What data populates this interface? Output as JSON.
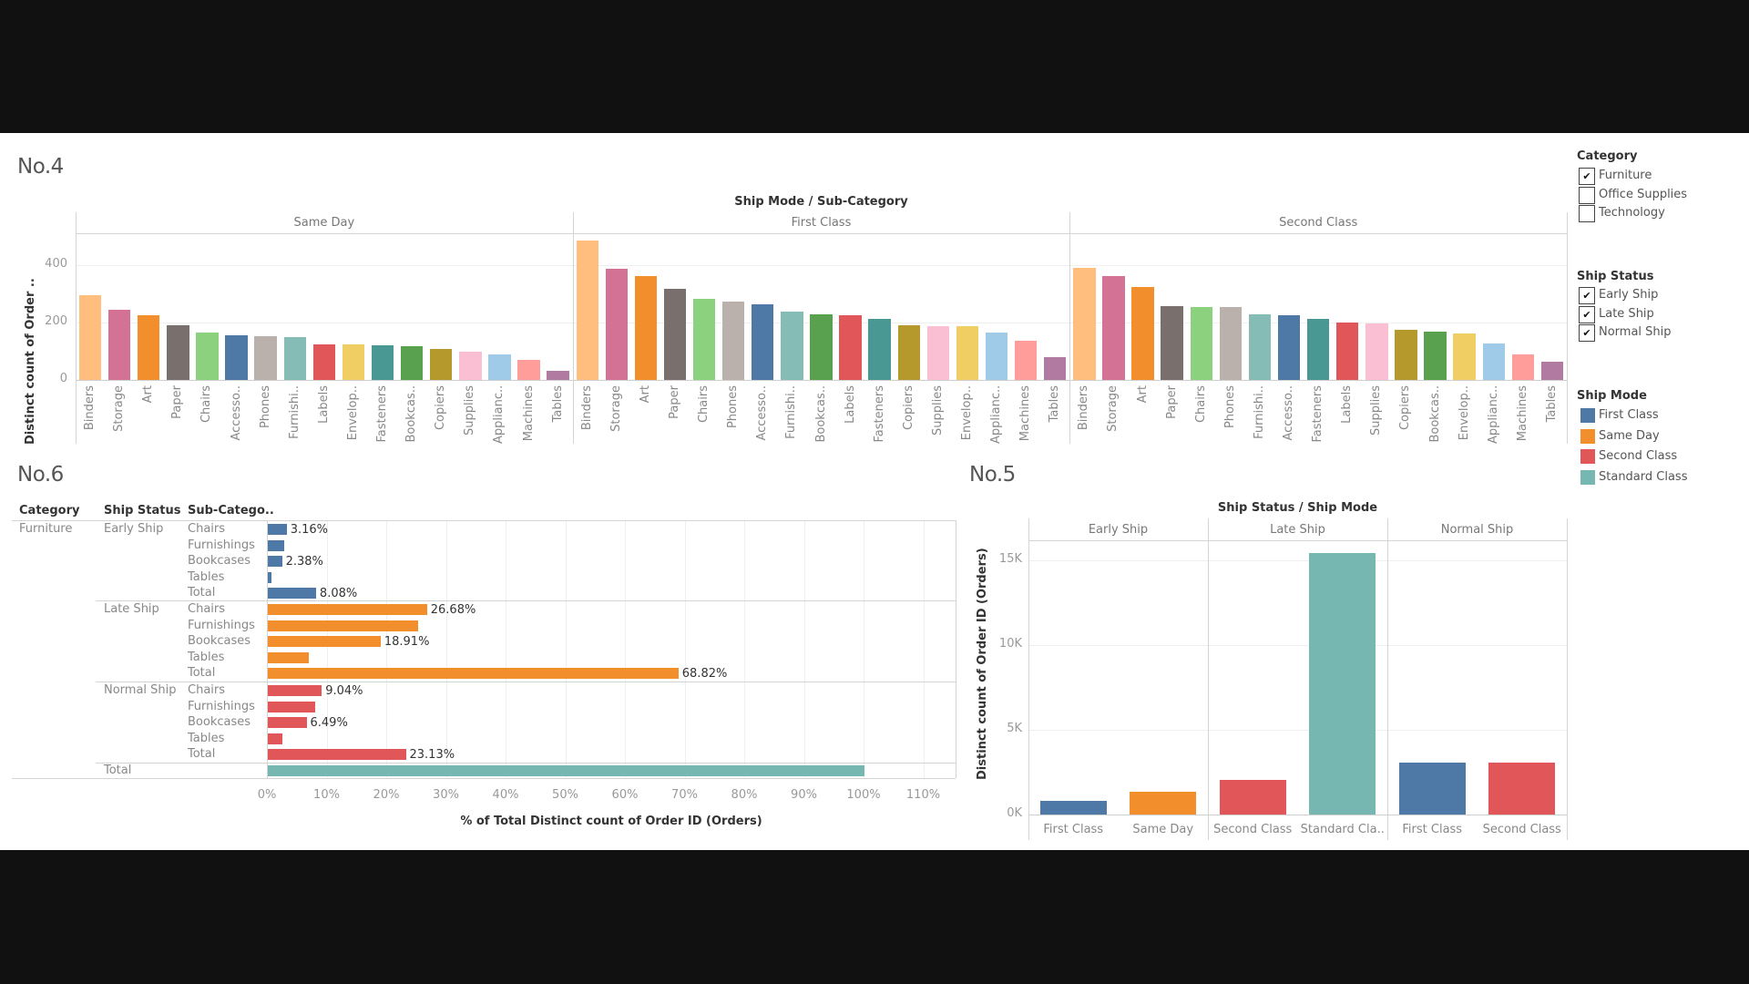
{
  "colors": {
    "ship_mode": {
      "First Class": "#4E79A7",
      "Same Day": "#F28E2B",
      "Second Class": "#E15759",
      "Standard Class": "#76B7B2"
    },
    "sub_category": {
      "Binders": "#FFBE7D",
      "Storage": "#D37295",
      "Art": "#F28E2B",
      "Paper": "#79706E",
      "Chairs": "#8CD17D",
      "Accessories": "#4E79A7",
      "Phones": "#BAB0AC",
      "Furnishings": "#86BCB6",
      "Labels": "#E15759",
      "Envelopes": "#F1CE63",
      "Fasteners": "#499894",
      "Bookcases": "#59A14F",
      "Copiers": "#B6992D",
      "Supplies": "#FABFD2",
      "Appliances": "#A0CBE8",
      "Machines": "#FF9D9A",
      "Tables": "#B07AA1"
    }
  },
  "titles": {
    "no4": "No.4",
    "no5": "No.5",
    "no6": "No.6"
  },
  "legend": {
    "category": {
      "title": "Category",
      "items": [
        {
          "label": "Furniture",
          "checked": true
        },
        {
          "label": "Office Supplies",
          "checked": false
        },
        {
          "label": "Technology",
          "checked": false
        }
      ]
    },
    "ship_status": {
      "title": "Ship Status",
      "items": [
        {
          "label": "Early Ship",
          "checked": true
        },
        {
          "label": "Late Ship",
          "checked": true
        },
        {
          "label": "Normal Ship",
          "checked": true
        }
      ]
    },
    "ship_mode": {
      "title": "Ship Mode",
      "items": [
        {
          "label": "First Class",
          "color": "#4E79A7"
        },
        {
          "label": "Same Day",
          "color": "#F28E2B"
        },
        {
          "label": "Second Class",
          "color": "#E15759"
        },
        {
          "label": "Standard Class",
          "color": "#76B7B2"
        }
      ]
    }
  },
  "chart_data": [
    {
      "id": "no4",
      "type": "bar",
      "title": "Ship Mode / Sub-Category",
      "ylabel": "Distinct count of Order ..",
      "xlabel": "",
      "ylim": [
        0,
        520
      ],
      "yticks": [
        {
          "v": 0,
          "label": "0"
        },
        {
          "v": 200,
          "label": "200"
        },
        {
          "v": 400,
          "label": "400"
        }
      ],
      "grid": true,
      "panels": [
        {
          "name": "Same Day",
          "bars": [
            {
              "cat": "Binders",
              "label": "Binders",
              "value": 294
            },
            {
              "cat": "Storage",
              "label": "Storage",
              "value": 245
            },
            {
              "cat": "Art",
              "label": "Art",
              "value": 225
            },
            {
              "cat": "Paper",
              "label": "Paper",
              "value": 189
            },
            {
              "cat": "Chairs",
              "label": "Chairs",
              "value": 166
            },
            {
              "cat": "Accessories",
              "label": "Accesso..",
              "value": 157
            },
            {
              "cat": "Phones",
              "label": "Phones",
              "value": 153
            },
            {
              "cat": "Furnishings",
              "label": "Furnishi..",
              "value": 150
            },
            {
              "cat": "Labels",
              "label": "Labels",
              "value": 125
            },
            {
              "cat": "Envelopes",
              "label": "Envelop..",
              "value": 124
            },
            {
              "cat": "Fasteners",
              "label": "Fasteners",
              "value": 121
            },
            {
              "cat": "Bookcases",
              "label": "Bookcas..",
              "value": 117
            },
            {
              "cat": "Copiers",
              "label": "Copiers",
              "value": 108
            },
            {
              "cat": "Supplies",
              "label": "Supplies",
              "value": 97
            },
            {
              "cat": "Appliances",
              "label": "Applianc..",
              "value": 89
            },
            {
              "cat": "Machines",
              "label": "Machines",
              "value": 69
            },
            {
              "cat": "Tables",
              "label": "Tables",
              "value": 32
            }
          ]
        },
        {
          "name": "First Class",
          "bars": [
            {
              "cat": "Binders",
              "label": "Binders",
              "value": 486
            },
            {
              "cat": "Storage",
              "label": "Storage",
              "value": 387
            },
            {
              "cat": "Art",
              "label": "Art",
              "value": 362
            },
            {
              "cat": "Paper",
              "label": "Paper",
              "value": 316
            },
            {
              "cat": "Chairs",
              "label": "Chairs",
              "value": 281
            },
            {
              "cat": "Phones",
              "label": "Phones",
              "value": 272
            },
            {
              "cat": "Accessories",
              "label": "Accesso..",
              "value": 264
            },
            {
              "cat": "Furnishings",
              "label": "Furnishi..",
              "value": 238
            },
            {
              "cat": "Bookcases",
              "label": "Bookcas..",
              "value": 228
            },
            {
              "cat": "Labels",
              "label": "Labels",
              "value": 225
            },
            {
              "cat": "Fasteners",
              "label": "Fasteners",
              "value": 212
            },
            {
              "cat": "Copiers",
              "label": "Copiers",
              "value": 189
            },
            {
              "cat": "Supplies",
              "label": "Supplies",
              "value": 186
            },
            {
              "cat": "Envelopes",
              "label": "Envelop..",
              "value": 186
            },
            {
              "cat": "Appliances",
              "label": "Applianc..",
              "value": 164
            },
            {
              "cat": "Machines",
              "label": "Machines",
              "value": 138
            },
            {
              "cat": "Tables",
              "label": "Tables",
              "value": 79
            }
          ]
        },
        {
          "name": "Second Class",
          "bars": [
            {
              "cat": "Binders",
              "label": "Binders",
              "value": 390
            },
            {
              "cat": "Storage",
              "label": "Storage",
              "value": 362
            },
            {
              "cat": "Art",
              "label": "Art",
              "value": 325
            },
            {
              "cat": "Paper",
              "label": "Paper",
              "value": 258
            },
            {
              "cat": "Chairs",
              "label": "Chairs",
              "value": 255
            },
            {
              "cat": "Phones",
              "label": "Phones",
              "value": 255
            },
            {
              "cat": "Furnishings",
              "label": "Furnishi..",
              "value": 228
            },
            {
              "cat": "Accessories",
              "label": "Accesso..",
              "value": 225
            },
            {
              "cat": "Fasteners",
              "label": "Fasteners",
              "value": 212
            },
            {
              "cat": "Labels",
              "label": "Labels",
              "value": 199
            },
            {
              "cat": "Supplies",
              "label": "Supplies",
              "value": 196
            },
            {
              "cat": "Copiers",
              "label": "Copiers",
              "value": 176
            },
            {
              "cat": "Bookcases",
              "label": "Bookcas..",
              "value": 169
            },
            {
              "cat": "Envelopes",
              "label": "Envelop..",
              "value": 163
            },
            {
              "cat": "Appliances",
              "label": "Applianc..",
              "value": 127
            },
            {
              "cat": "Machines",
              "label": "Machines",
              "value": 88
            },
            {
              "cat": "Tables",
              "label": "Tables",
              "value": 65
            }
          ]
        }
      ]
    },
    {
      "id": "no6",
      "type": "bar",
      "orientation": "horizontal",
      "xlabel": "% of Total Distinct count of Order ID (Orders)",
      "xlim": [
        0,
        115
      ],
      "xticks": [
        "0%",
        "10%",
        "20%",
        "30%",
        "40%",
        "50%",
        "60%",
        "70%",
        "80%",
        "90%",
        "100%",
        "110%"
      ],
      "columns": [
        "Category",
        "Ship Status",
        "Sub-Catego.."
      ],
      "category": "Furniture",
      "grid": true,
      "groups": [
        {
          "status": "Early Ship",
          "color": "#4E79A7",
          "rows": [
            {
              "sub": "Chairs",
              "value": 3.16,
              "label": "3.16%"
            },
            {
              "sub": "Furnishings",
              "value": 2.72,
              "label": ""
            },
            {
              "sub": "Bookcases",
              "value": 2.38,
              "label": "2.38%"
            },
            {
              "sub": "Tables",
              "value": 0.62,
              "label": ""
            },
            {
              "sub": "Total",
              "value": 8.08,
              "label": "8.08%"
            }
          ]
        },
        {
          "status": "Late Ship",
          "color": "#F28E2B",
          "rows": [
            {
              "sub": "Chairs",
              "value": 26.68,
              "label": "26.68%"
            },
            {
              "sub": "Furnishings",
              "value": 25.2,
              "label": ""
            },
            {
              "sub": "Bookcases",
              "value": 18.91,
              "label": "18.91%"
            },
            {
              "sub": "Tables",
              "value": 6.8,
              "label": ""
            },
            {
              "sub": "Total",
              "value": 68.82,
              "label": "68.82%"
            }
          ]
        },
        {
          "status": "Normal Ship",
          "color": "#E15759",
          "rows": [
            {
              "sub": "Chairs",
              "value": 9.04,
              "label": "9.04%"
            },
            {
              "sub": "Furnishings",
              "value": 7.9,
              "label": ""
            },
            {
              "sub": "Bookcases",
              "value": 6.49,
              "label": "6.49%"
            },
            {
              "sub": "Tables",
              "value": 2.4,
              "label": ""
            },
            {
              "sub": "Total",
              "value": 23.13,
              "label": "23.13%"
            }
          ]
        }
      ],
      "grand_total": {
        "label": "Total",
        "value": 100,
        "color": "#76B7B2"
      }
    },
    {
      "id": "no5",
      "type": "bar",
      "title": "Ship Status / Ship Mode",
      "ylabel": "Distinct count of Order ID (Orders)",
      "xlabel": "",
      "ylim": [
        0,
        16500
      ],
      "yticks": [
        {
          "v": 0,
          "label": "0K"
        },
        {
          "v": 5000,
          "label": "5K"
        },
        {
          "v": 10000,
          "label": "10K"
        },
        {
          "v": 15000,
          "label": "15K"
        }
      ],
      "grid": true,
      "panels": [
        {
          "name": "Early Ship",
          "bars": [
            {
              "mode": "First Class",
              "label": "First Class",
              "value": 806
            },
            {
              "mode": "Same Day",
              "label": "Same Day",
              "value": 1344
            }
          ]
        },
        {
          "name": "Late Ship",
          "bars": [
            {
              "mode": "Second Class",
              "label": "Second Class",
              "value": 2060
            },
            {
              "mode": "Standard Class",
              "label": "Standard Cla..",
              "value": 15414
            }
          ]
        },
        {
          "name": "Normal Ship",
          "bars": [
            {
              "mode": "First Class",
              "label": "First Class",
              "value": 3047
            },
            {
              "mode": "Second Class",
              "label": "Second Class",
              "value": 3047
            }
          ]
        }
      ]
    }
  ]
}
